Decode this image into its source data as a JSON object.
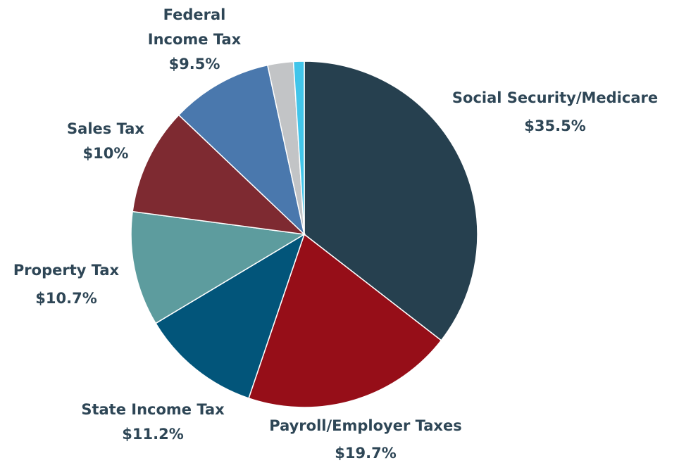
{
  "chart_data": {
    "type": "pie",
    "slices": [
      {
        "label_lines": [
          "Social Security/Medicare"
        ],
        "value_label": "$35.5%",
        "value": 35.5,
        "color": "#26404f"
      },
      {
        "label_lines": [
          "Payroll/Employer Taxes"
        ],
        "value_label": "$19.7%",
        "value": 19.7,
        "color": "#960e18"
      },
      {
        "label_lines": [
          "State Income Tax"
        ],
        "value_label": "$11.2%",
        "value": 11.2,
        "color": "#02557a"
      },
      {
        "label_lines": [
          "Property Tax"
        ],
        "value_label": "$10.7%",
        "value": 10.7,
        "color": "#5d9c9e"
      },
      {
        "label_lines": [
          "Sales Tax"
        ],
        "value_label": "$10%",
        "value": 10.0,
        "color": "#7e2a31"
      },
      {
        "label_lines": [
          "Federal",
          "Income Tax"
        ],
        "value_label": "$9.5%",
        "value": 9.5,
        "color": "#4a78ad"
      },
      {
        "label_lines": [],
        "value_label": "",
        "value": 2.4,
        "color": "#c2c4c6"
      },
      {
        "label_lines": [],
        "value_label": "",
        "value": 1.0,
        "color": "#41c5ea"
      }
    ],
    "start_angle": "12 o'clock",
    "direction": "clockwise"
  }
}
